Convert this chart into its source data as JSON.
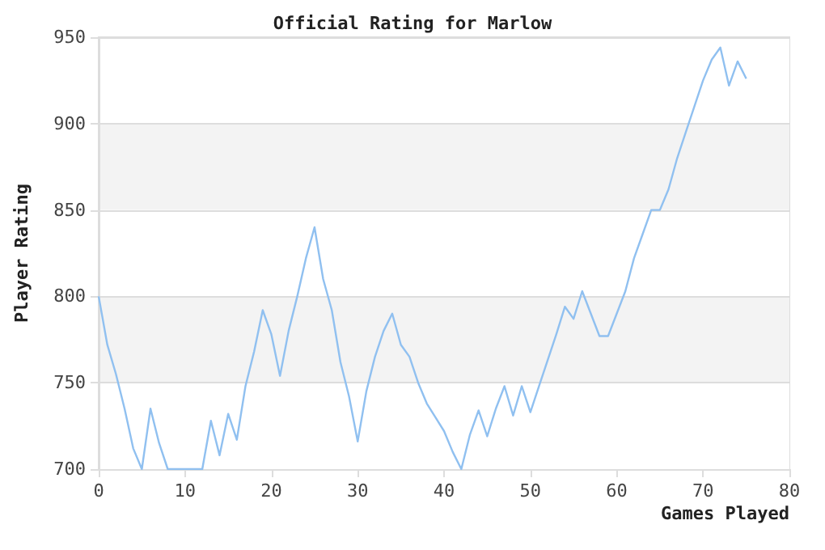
{
  "chart_data": {
    "type": "line",
    "title": "Official Rating for Marlow",
    "xlabel": "Games Played",
    "ylabel": "Player Rating",
    "series": [
      {
        "color": "#90c0f0",
        "x": [
          0,
          1,
          2,
          3,
          4,
          5,
          6,
          7,
          8,
          9,
          10,
          11,
          12,
          13,
          14,
          15,
          16,
          17,
          18,
          19,
          20,
          21,
          22,
          23,
          24,
          25,
          26,
          27,
          28,
          29,
          30,
          31,
          32,
          33,
          34,
          35,
          36,
          37,
          38,
          39,
          40,
          41,
          42,
          43,
          44,
          45,
          46,
          47,
          48,
          49,
          50,
          51,
          52,
          53,
          54,
          55,
          56,
          57,
          58,
          59,
          60,
          61,
          62,
          63,
          64,
          65,
          66,
          67,
          68,
          69,
          70,
          71,
          72,
          73,
          74,
          75
        ],
        "values": [
          800,
          772,
          755,
          735,
          712,
          700,
          735,
          715,
          700,
          700,
          700,
          700,
          700,
          728,
          708,
          732,
          717,
          748,
          768,
          792,
          778,
          754,
          780,
          800,
          822,
          840,
          810,
          792,
          762,
          742,
          716,
          745,
          765,
          780,
          790,
          772,
          765,
          750,
          738,
          730,
          722,
          710,
          700,
          720,
          734,
          719,
          735,
          748,
          731,
          748,
          733,
          748,
          763,
          778,
          794,
          787,
          803,
          790,
          777,
          777,
          790,
          803,
          822,
          836,
          850,
          850,
          862,
          880,
          895,
          910,
          925,
          937,
          944,
          922,
          936,
          926
        ]
      }
    ],
    "xlim": [
      0,
      80
    ],
    "xticks": [
      0,
      10,
      20,
      30,
      40,
      50,
      60,
      70,
      80
    ],
    "ylim": [
      700,
      950
    ],
    "yticks": [
      700,
      750,
      800,
      850,
      900,
      950
    ],
    "grid": "y",
    "marker": "none",
    "line_style": "solid"
  }
}
